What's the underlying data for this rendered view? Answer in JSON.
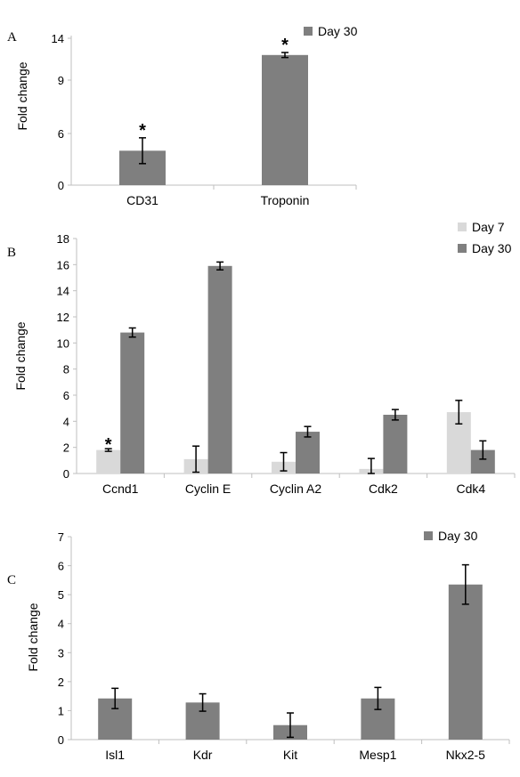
{
  "colors": {
    "day7": "#d9d9d9",
    "day30": "#7f7f7f",
    "axis": "#bfbfbf",
    "error": "#000000"
  },
  "chart_data": [
    {
      "panel": "A",
      "type": "bar",
      "ylabel": "Fold change",
      "yticks": [
        0,
        6,
        9,
        14
      ],
      "ylim": [
        0,
        14
      ],
      "grid": false,
      "legend_position": "top-right",
      "categories": [
        "CD31",
        "Troponin"
      ],
      "series": [
        {
          "name": "Day 30",
          "color": "#7f7f7f",
          "values": [
            4.0,
            12.0
          ],
          "errors": [
            1.5,
            0.3
          ]
        }
      ],
      "significance": [
        "*",
        "*"
      ]
    },
    {
      "panel": "B",
      "type": "bar",
      "ylabel": "Fold change",
      "yticks": [
        0,
        2,
        4,
        6,
        8,
        10,
        12,
        14,
        16,
        18
      ],
      "ylim": [
        0,
        18
      ],
      "grid": false,
      "legend_position": "top-right",
      "categories": [
        "Ccnd1",
        "Cyclin E",
        "Cyclin A2",
        "Cdk2",
        "Cdk4"
      ],
      "series": [
        {
          "name": "Day 7",
          "color": "#d9d9d9",
          "values": [
            1.8,
            1.1,
            0.9,
            0.35,
            4.7
          ],
          "errors": [
            0.1,
            1.0,
            0.7,
            0.8,
            0.9
          ]
        },
        {
          "name": "Day 30",
          "color": "#7f7f7f",
          "values": [
            10.8,
            15.9,
            3.2,
            4.5,
            1.8
          ],
          "errors": [
            0.35,
            0.3,
            0.4,
            0.4,
            0.7
          ]
        }
      ],
      "significance": [
        "*",
        "",
        "",
        "",
        ""
      ]
    },
    {
      "panel": "C",
      "type": "bar",
      "ylabel": "Fold change",
      "yticks": [
        0,
        1,
        2,
        3,
        4,
        5,
        6,
        7
      ],
      "ylim": [
        0,
        7
      ],
      "grid": false,
      "legend_position": "top-right",
      "categories": [
        "Isl1",
        "Kdr",
        "Kit",
        "Mesp1",
        "Nkx2-5"
      ],
      "series": [
        {
          "name": "Day 30",
          "color": "#7f7f7f",
          "values": [
            1.42,
            1.28,
            0.5,
            1.42,
            5.35
          ],
          "errors": [
            0.35,
            0.3,
            0.42,
            0.38,
            0.68
          ]
        }
      ],
      "significance": [
        "",
        "",
        "",
        "",
        ""
      ]
    }
  ]
}
